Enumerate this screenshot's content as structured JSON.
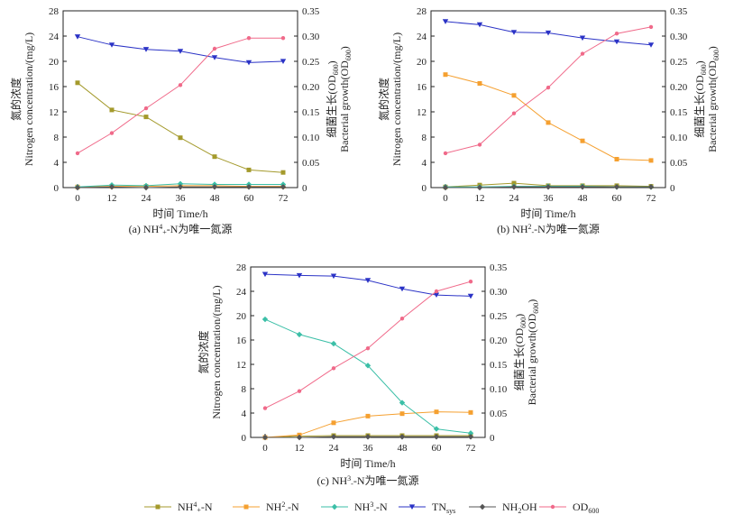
{
  "figure": {
    "legend": [
      {
        "label": "NH4+-N",
        "color": "#a49a2c",
        "marker": "square"
      },
      {
        "label": "NH2--N",
        "color": "#f5a030",
        "marker": "square"
      },
      {
        "label": "NH3--N",
        "color": "#3bbfa7",
        "marker": "diamond"
      },
      {
        "label": "TNsys",
        "color": "#2b33c6",
        "marker": "triangle-down"
      },
      {
        "label": "NH2OH",
        "color": "#555555",
        "marker": "diamond"
      },
      {
        "label": "OD600",
        "color": "#f06a8a",
        "marker": "circle"
      }
    ]
  },
  "chart_data": [
    {
      "type": "line",
      "caption": "(a) NH4+-N为唯一氮源",
      "xlabel": "时间 Time/h",
      "ylabel_cn": "氮的浓度",
      "ylabel_en": "Nitrogen concentration/(mg/L)",
      "y2label_cn": "细菌生长(OD600)",
      "y2label_en": "Bacterial growth(OD600)",
      "x": [
        0,
        12,
        24,
        36,
        48,
        60,
        72
      ],
      "xticks": [
        "0",
        "12",
        "24",
        "36",
        "48",
        "60",
        "72"
      ],
      "ylim": [
        0,
        28
      ],
      "yticks": [
        "0",
        "4",
        "8",
        "12",
        "16",
        "20",
        "24",
        "28"
      ],
      "y2lim": [
        0,
        0.35
      ],
      "y2ticks": [
        "0",
        "0.05",
        "0.10",
        "0.15",
        "0.20",
        "0.25",
        "0.30",
        "0.35"
      ],
      "series": [
        {
          "name": "NH4+-N",
          "axis": "left",
          "values": [
            16.6,
            12.3,
            11.2,
            7.9,
            4.9,
            2.8,
            2.4
          ]
        },
        {
          "name": "NH2--N",
          "axis": "left",
          "values": [
            0.1,
            0.2,
            0.2,
            0.3,
            0.3,
            0.2,
            0.2
          ]
        },
        {
          "name": "NH3--N",
          "axis": "left",
          "values": [
            0.1,
            0.4,
            0.3,
            0.6,
            0.5,
            0.5,
            0.5
          ]
        },
        {
          "name": "TNsys",
          "axis": "left",
          "values": [
            23.9,
            22.6,
            21.9,
            21.6,
            20.6,
            19.8,
            20.0
          ]
        },
        {
          "name": "NH2OH",
          "axis": "left",
          "values": [
            0.0,
            0.1,
            0.0,
            0.1,
            0.1,
            0.1,
            0.1
          ]
        },
        {
          "name": "OD600",
          "axis": "right",
          "values": [
            0.068,
            0.108,
            0.157,
            0.203,
            0.275,
            0.296,
            0.296
          ]
        }
      ]
    },
    {
      "type": "line",
      "caption": "(b) NH2--N为唯一氮源",
      "xlabel": "时间 Time/h",
      "ylabel_cn": "氮的浓度",
      "ylabel_en": "Nitrogen concentration/(mg/L)",
      "y2label_cn": "细菌生长(OD600)",
      "y2label_en": "Bacterial growth(OD600)",
      "x": [
        0,
        12,
        24,
        36,
        48,
        60,
        72
      ],
      "xticks": [
        "0",
        "12",
        "24",
        "36",
        "48",
        "60",
        "72"
      ],
      "ylim": [
        0,
        28
      ],
      "yticks": [
        "0",
        "4",
        "8",
        "12",
        "16",
        "20",
        "24",
        "28"
      ],
      "y2lim": [
        0,
        0.35
      ],
      "y2ticks": [
        "0",
        "0.05",
        "0.10",
        "0.15",
        "0.20",
        "0.25",
        "0.30",
        "0.35"
      ],
      "series": [
        {
          "name": "NH4+-N",
          "axis": "left",
          "values": [
            0.1,
            0.4,
            0.7,
            0.3,
            0.3,
            0.3,
            0.2
          ]
        },
        {
          "name": "NH2--N",
          "axis": "left",
          "values": [
            17.9,
            16.5,
            14.6,
            10.3,
            7.4,
            4.5,
            4.3
          ]
        },
        {
          "name": "NH3--N",
          "axis": "left",
          "values": [
            0.1,
            0.1,
            0.2,
            0.2,
            0.2,
            0.1,
            0.1
          ]
        },
        {
          "name": "TNsys",
          "axis": "left",
          "values": [
            26.3,
            25.8,
            24.6,
            24.5,
            23.7,
            23.1,
            22.6
          ]
        },
        {
          "name": "NH2OH",
          "axis": "left",
          "values": [
            0.0,
            0.0,
            0.1,
            0.1,
            0.1,
            0.1,
            0.1
          ]
        },
        {
          "name": "OD600",
          "axis": "right",
          "values": [
            0.068,
            0.085,
            0.147,
            0.198,
            0.265,
            0.305,
            0.318
          ]
        }
      ]
    },
    {
      "type": "line",
      "caption": "(c) NH3--N为唯一氮源",
      "xlabel": "时间 Time/h",
      "ylabel_cn": "氮的浓度",
      "ylabel_en": "Nitrogen concentration/(mg/L)",
      "y2label_cn": "细菌生长(OD600)",
      "y2label_en": "Bacterial growth(OD600)",
      "x": [
        0,
        12,
        24,
        36,
        48,
        60,
        72
      ],
      "xticks": [
        "0",
        "12",
        "24",
        "36",
        "48",
        "60",
        "72"
      ],
      "ylim": [
        0,
        28
      ],
      "yticks": [
        "0",
        "4",
        "8",
        "12",
        "16",
        "20",
        "24",
        "28"
      ],
      "y2lim": [
        0,
        0.35
      ],
      "y2ticks": [
        "0",
        "0.05",
        "0.10",
        "0.15",
        "0.20",
        "0.25",
        "0.30",
        "0.35"
      ],
      "series": [
        {
          "name": "NH4+-N",
          "axis": "left",
          "values": [
            0.0,
            0.2,
            0.3,
            0.3,
            0.3,
            0.3,
            0.3
          ]
        },
        {
          "name": "NH2--N",
          "axis": "left",
          "values": [
            0.0,
            0.4,
            2.4,
            3.5,
            3.9,
            4.2,
            4.1
          ]
        },
        {
          "name": "NH3--N",
          "axis": "left",
          "values": [
            19.4,
            16.9,
            15.4,
            11.8,
            5.7,
            1.4,
            0.7
          ]
        },
        {
          "name": "TNsys",
          "axis": "left",
          "values": [
            26.8,
            26.6,
            26.5,
            25.8,
            24.4,
            23.4,
            23.2
          ]
        },
        {
          "name": "NH2OH",
          "axis": "left",
          "values": [
            0.0,
            0.0,
            0.1,
            0.1,
            0.1,
            0.1,
            0.1
          ]
        },
        {
          "name": "OD600",
          "axis": "right",
          "values": [
            0.06,
            0.095,
            0.142,
            0.183,
            0.244,
            0.3,
            0.32
          ]
        }
      ]
    }
  ]
}
